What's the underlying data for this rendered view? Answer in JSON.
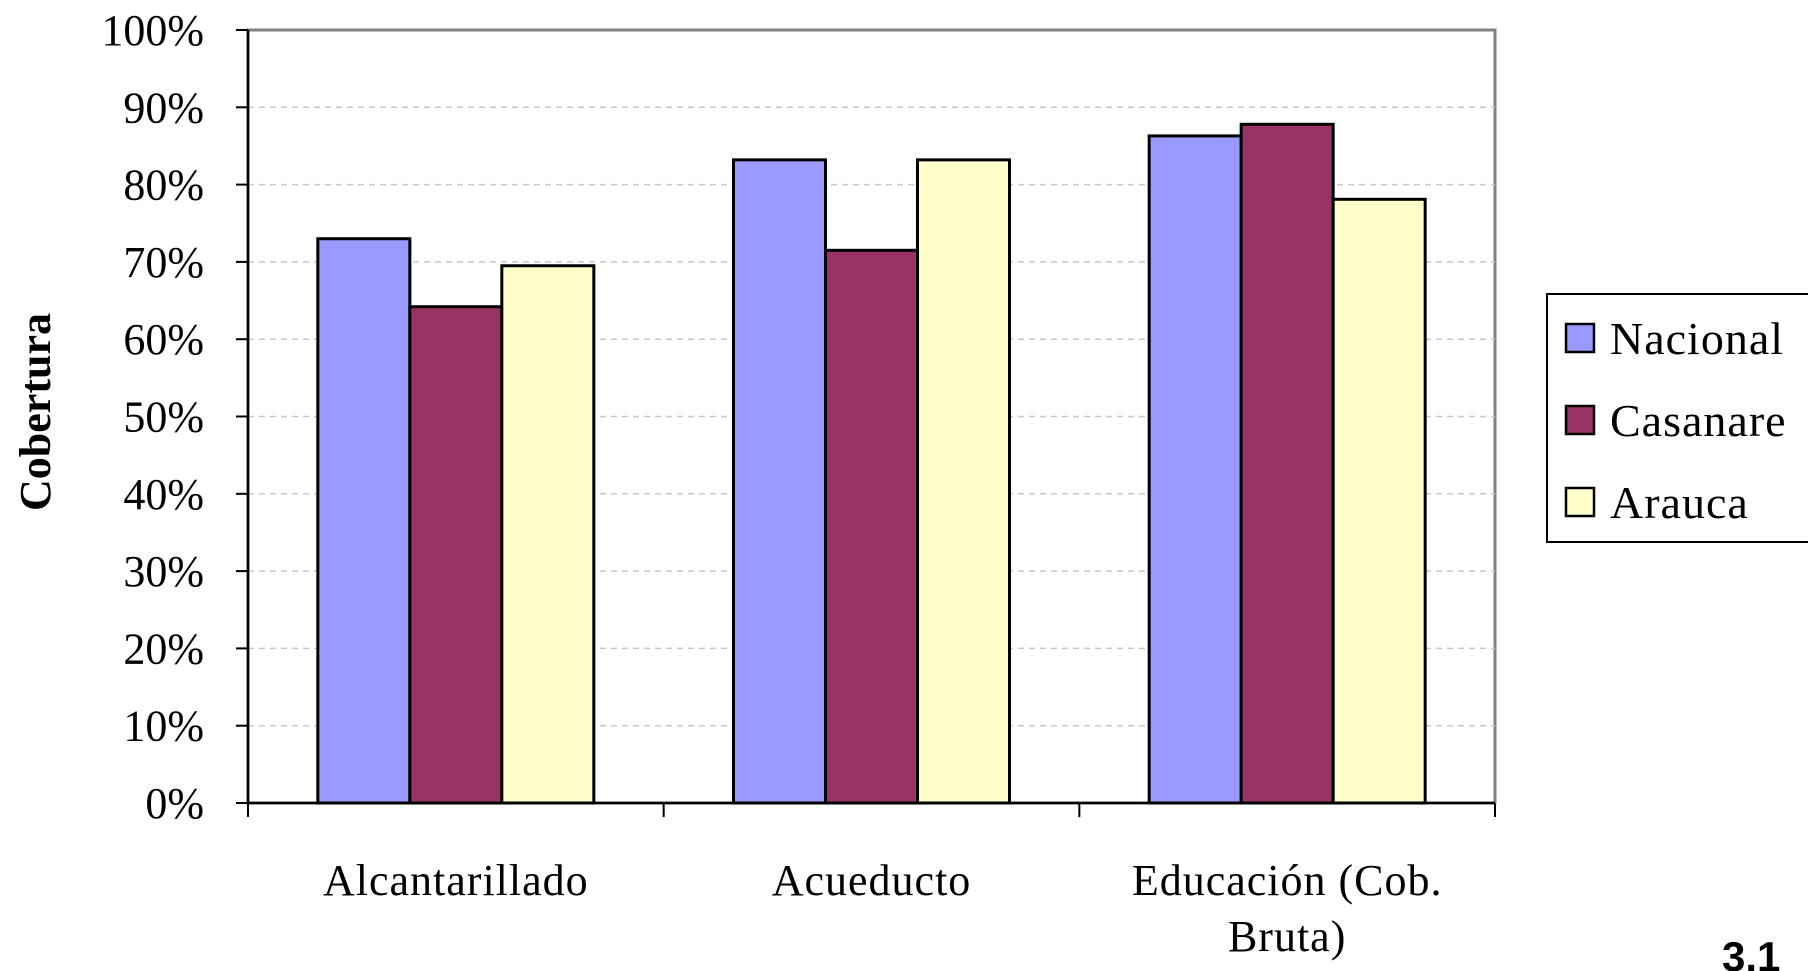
{
  "chart_data": {
    "type": "bar",
    "categories": [
      "Alcantarillado",
      "Acueducto",
      "Educación (Cob. Bruta)"
    ],
    "series": [
      {
        "name": "Nacional",
        "color": "#9999ff",
        "values": [
          73,
          83.2,
          86.3
        ]
      },
      {
        "name": "Casanare",
        "color": "#993366",
        "values": [
          64.2,
          71.5,
          87.8
        ]
      },
      {
        "name": "Arauca",
        "color": "#ffffcc",
        "values": [
          69.5,
          83.2,
          78.1
        ]
      }
    ],
    "ylabel": "Cobertura",
    "ylim": [
      0,
      100
    ],
    "yticks": [
      "0%",
      "10%",
      "20%",
      "30%",
      "40%",
      "50%",
      "60%",
      "70%",
      "80%",
      "90%",
      "100%"
    ],
    "grid": true,
    "legend": "right"
  },
  "corner_text": "3.1"
}
